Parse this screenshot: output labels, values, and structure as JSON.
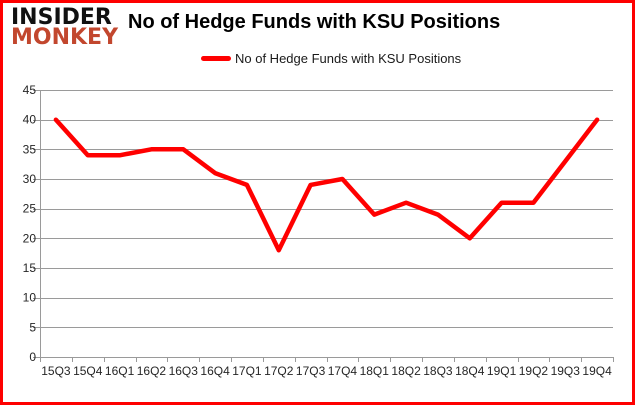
{
  "branding": {
    "logo_line1": "INSIDER",
    "logo_line2": "MONKEY",
    "logo_color_primary": "#111111",
    "logo_color_secondary": "#c2472e"
  },
  "header": {
    "title": "No of Hedge Funds with KSU Positions"
  },
  "legend": {
    "label": "No of Hedge Funds with KSU Positions",
    "swatch_color": "#ff0000"
  },
  "chart_data": {
    "type": "line",
    "title": "No of Hedge Funds with KSU Positions",
    "categories": [
      "15Q3",
      "15Q4",
      "16Q1",
      "16Q2",
      "16Q3",
      "16Q4",
      "17Q1",
      "17Q2",
      "17Q3",
      "17Q4",
      "18Q1",
      "18Q2",
      "18Q3",
      "18Q4",
      "19Q1",
      "19Q2",
      "19Q3",
      "19Q4"
    ],
    "series": [
      {
        "name": "No of Hedge Funds with KSU Positions",
        "color": "#ff0000",
        "values": [
          40,
          34,
          34,
          35,
          35,
          31,
          29,
          18,
          29,
          30,
          24,
          26,
          24,
          20,
          26,
          26,
          33,
          40
        ]
      }
    ],
    "ylim": [
      0,
      45
    ],
    "yticks": [
      0,
      5,
      10,
      15,
      20,
      25,
      30,
      35,
      40,
      45
    ],
    "grid": true,
    "legend_position": "top",
    "colors": {
      "gridline": "#9a9a9a",
      "axis": "#9a9a9a",
      "tick_label": "#262626",
      "background": "#ffffff",
      "frame_border": "#fe0000"
    }
  }
}
